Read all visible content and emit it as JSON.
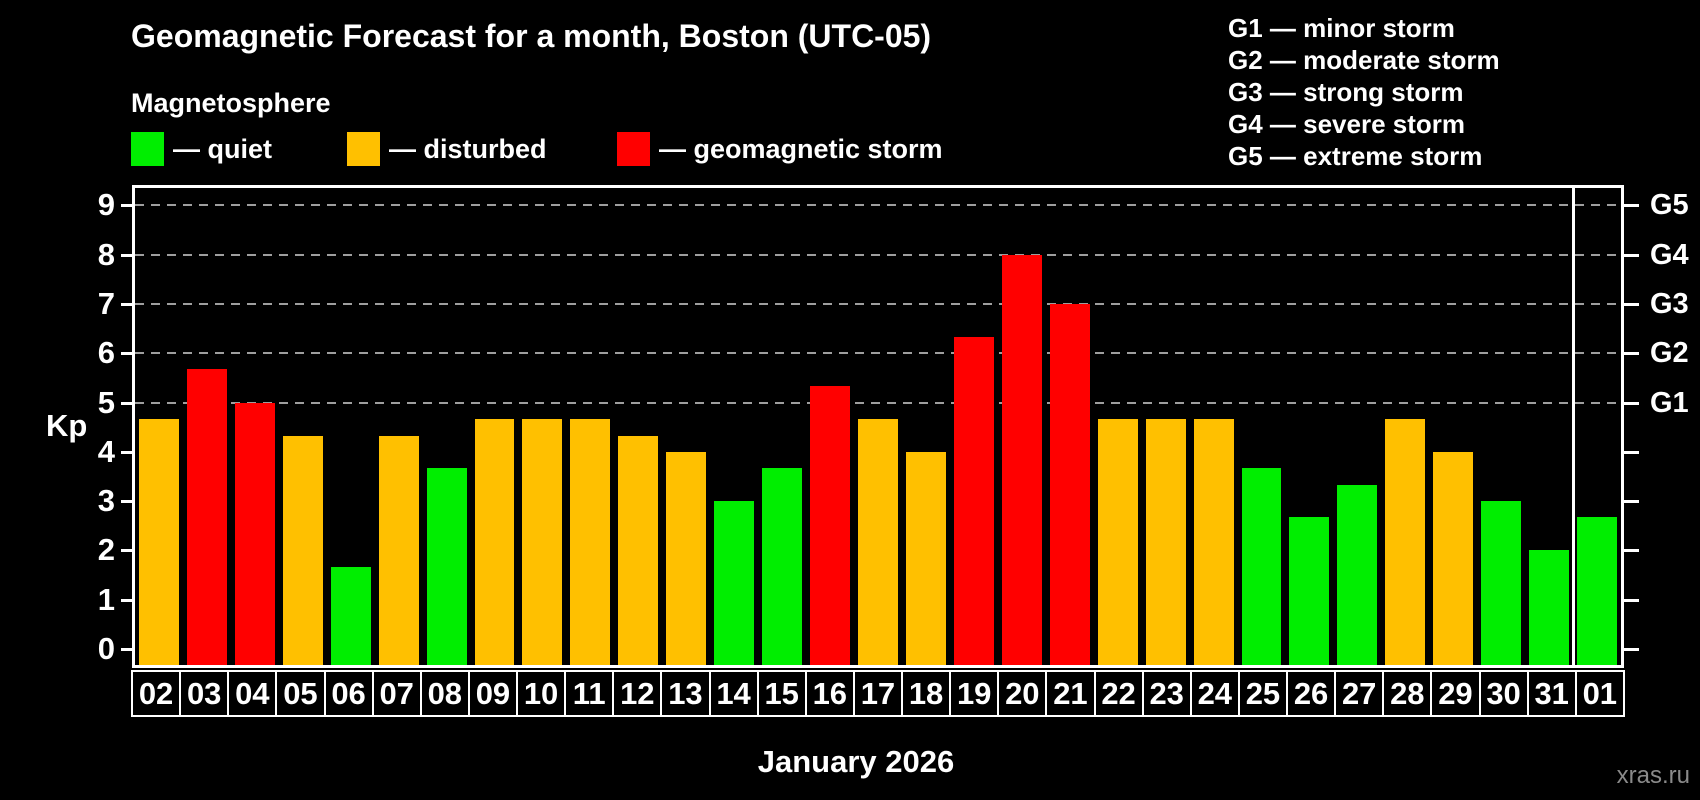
{
  "header": {
    "title": "Geomagnetic Forecast for a month, Boston (UTC-05)",
    "subtitle": "Magnetosphere",
    "legend": [
      {
        "status": "quiet",
        "label": "— quiet"
      },
      {
        "status": "disturbed",
        "label": "— disturbed"
      },
      {
        "status": "storm",
        "label": "— geomagnetic storm"
      }
    ],
    "g_scale": [
      "G1 — minor storm",
      "G2 — moderate storm",
      "G3 — strong storm",
      "G4 — severe storm",
      "G5 — extreme storm"
    ]
  },
  "footer": {
    "x_axis_title": "January 2026",
    "watermark": "xras.ru"
  },
  "colors": {
    "background": "#000000",
    "axis": "#FFFFFF",
    "gridline": "#9E9E9E",
    "watermark": "#8A8A8A"
  },
  "chart_data": {
    "type": "bar",
    "title": "Geomagnetic Forecast for a month, Boston (UTC-05)",
    "ylabel": "Kp",
    "xlabel": "January 2026",
    "ylim": [
      0,
      9
    ],
    "yticks": [
      0,
      1,
      2,
      3,
      4,
      5,
      6,
      7,
      8,
      9
    ],
    "grid": true,
    "gridlines_at": [
      5,
      6,
      7,
      8,
      9
    ],
    "legend_position": "top-left",
    "right_axis": [
      {
        "value": 5,
        "label": "G1"
      },
      {
        "value": 6,
        "label": "G2"
      },
      {
        "value": 7,
        "label": "G3"
      },
      {
        "value": 8,
        "label": "G4"
      },
      {
        "value": 9,
        "label": "G5"
      }
    ],
    "categories": [
      "02",
      "03",
      "04",
      "05",
      "06",
      "07",
      "08",
      "09",
      "10",
      "11",
      "12",
      "13",
      "14",
      "15",
      "16",
      "17",
      "18",
      "19",
      "20",
      "21",
      "22",
      "23",
      "24",
      "25",
      "26",
      "27",
      "28",
      "29",
      "30",
      "31",
      "01"
    ],
    "values": [
      4.67,
      5.67,
      5.0,
      4.33,
      1.67,
      4.33,
      3.67,
      4.67,
      4.67,
      4.67,
      4.33,
      4.0,
      3.0,
      3.67,
      5.33,
      4.67,
      4.0,
      6.33,
      8.0,
      7.0,
      4.67,
      4.67,
      4.67,
      3.67,
      2.67,
      3.33,
      4.67,
      4.0,
      3.0,
      2.0,
      2.67
    ],
    "statuses": [
      "disturbed",
      "storm",
      "storm",
      "disturbed",
      "quiet",
      "disturbed",
      "quiet",
      "disturbed",
      "disturbed",
      "disturbed",
      "disturbed",
      "disturbed",
      "quiet",
      "quiet",
      "storm",
      "disturbed",
      "disturbed",
      "storm",
      "storm",
      "storm",
      "disturbed",
      "disturbed",
      "disturbed",
      "quiet",
      "quiet",
      "quiet",
      "disturbed",
      "disturbed",
      "quiet",
      "quiet",
      "quiet"
    ],
    "status_colors": {
      "quiet": "#00EE00",
      "disturbed": "#FFC000",
      "storm": "#FF0000"
    },
    "month_separator_before_index": 30
  }
}
